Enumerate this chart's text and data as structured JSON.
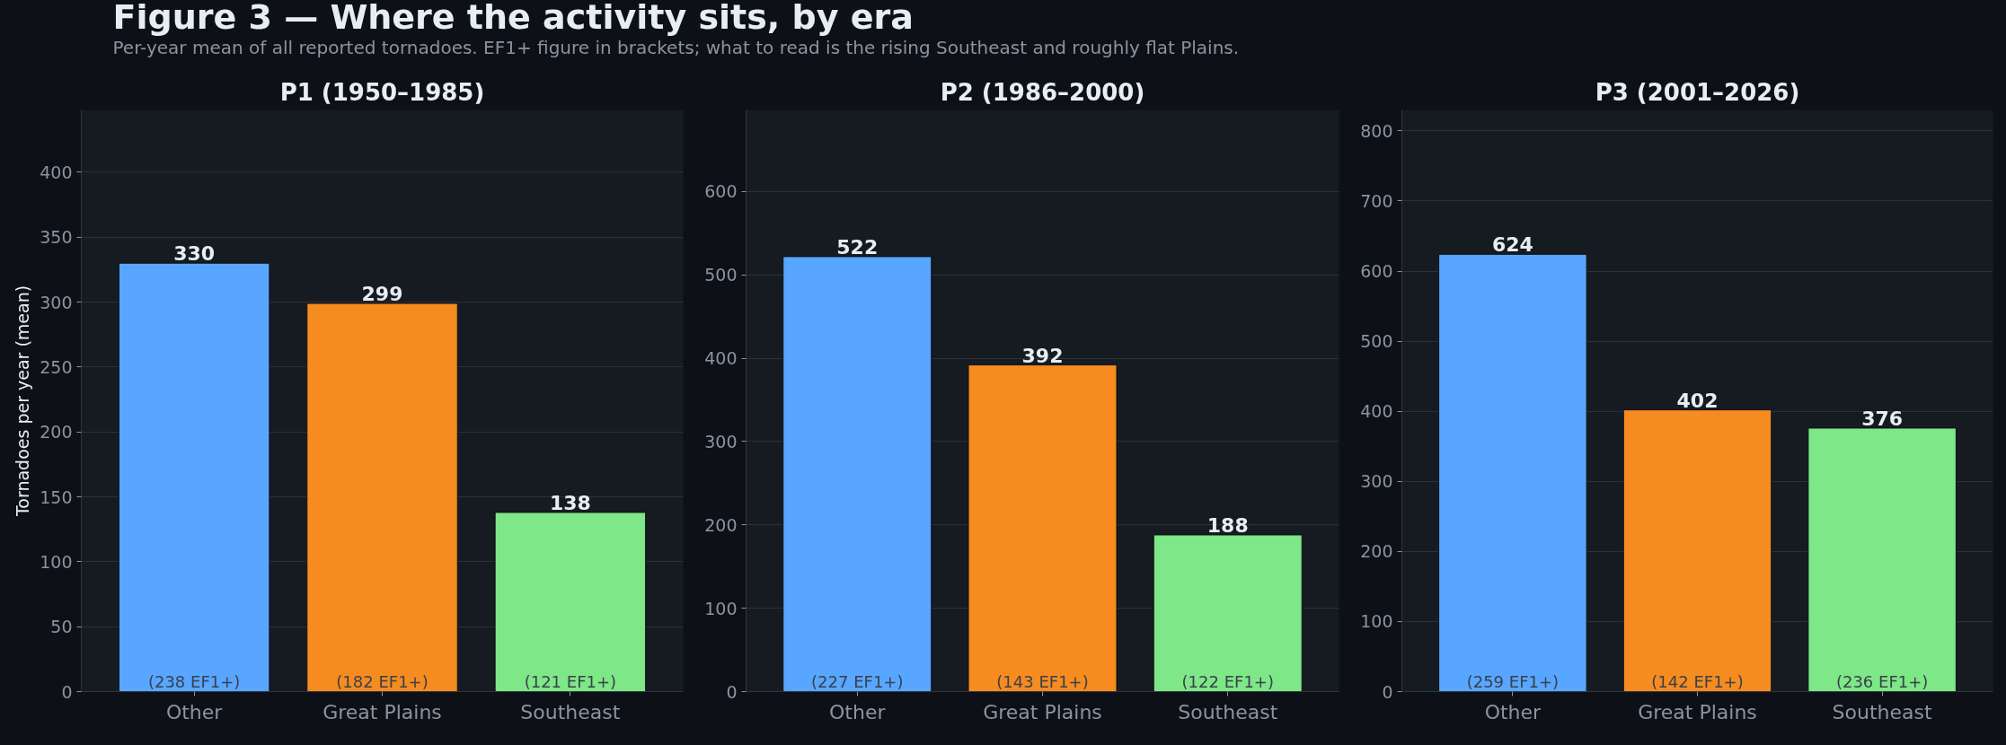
{
  "chart_data": [
    {
      "type": "other",
      "title": "Figure 3 — Where the activity sits, by era",
      "subtitle": "Per-year mean of all reported tornadoes. EF1+ figure in brackets; what to read is the rising Southeast and roughly flat Plains."
    },
    {
      "type": "bar",
      "title": "P1 (1950–1985)",
      "ylabel": "Tornadoes per year (mean)",
      "categories": [
        "Other",
        "Great Plains",
        "Southeast"
      ],
      "values": [
        330,
        299,
        138
      ],
      "colors": [
        "#58a6ff",
        "#f68b1f",
        "#7ee787"
      ],
      "ylim": [
        0,
        448
      ],
      "yticks": [
        0,
        50,
        100,
        150,
        200,
        250,
        300,
        350,
        400
      ],
      "grid": "y",
      "data_labels": true,
      "annotations": [
        {
          "text": "(238 EF1+)",
          "x": "Other",
          "y": 0
        },
        {
          "text": "(182 EF1+)",
          "x": "Great Plains",
          "y": 0
        },
        {
          "text": "(121 EF1+)",
          "x": "Southeast",
          "y": 0
        }
      ]
    },
    {
      "type": "bar",
      "title": "P2 (1986–2000)",
      "categories": [
        "Other",
        "Great Plains",
        "Southeast"
      ],
      "values": [
        522,
        392,
        188
      ],
      "colors": [
        "#58a6ff",
        "#f68b1f",
        "#7ee787"
      ],
      "ylim": [
        0,
        698
      ],
      "yticks": [
        0,
        100,
        200,
        300,
        400,
        500,
        600
      ],
      "grid": "y",
      "data_labels": true,
      "annotations": [
        {
          "text": "(227 EF1+)",
          "x": "Other",
          "y": 0
        },
        {
          "text": "(143 EF1+)",
          "x": "Great Plains",
          "y": 0
        },
        {
          "text": "(122 EF1+)",
          "x": "Southeast",
          "y": 0
        }
      ]
    },
    {
      "type": "bar",
      "title": "P3 (2001–2026)",
      "categories": [
        "Other",
        "Great Plains",
        "Southeast"
      ],
      "values": [
        624,
        402,
        376
      ],
      "colors": [
        "#58a6ff",
        "#f68b1f",
        "#7ee787"
      ],
      "ylim": [
        0,
        830
      ],
      "yticks": [
        0,
        100,
        200,
        300,
        400,
        500,
        600,
        700,
        800
      ],
      "grid": "y",
      "data_labels": true,
      "annotations": [
        {
          "text": "(259 EF1+)",
          "x": "Other",
          "y": 0
        },
        {
          "text": "(142 EF1+)",
          "x": "Great Plains",
          "y": 0
        },
        {
          "text": "(236 EF1+)",
          "x": "Southeast",
          "y": 0
        }
      ]
    }
  ]
}
